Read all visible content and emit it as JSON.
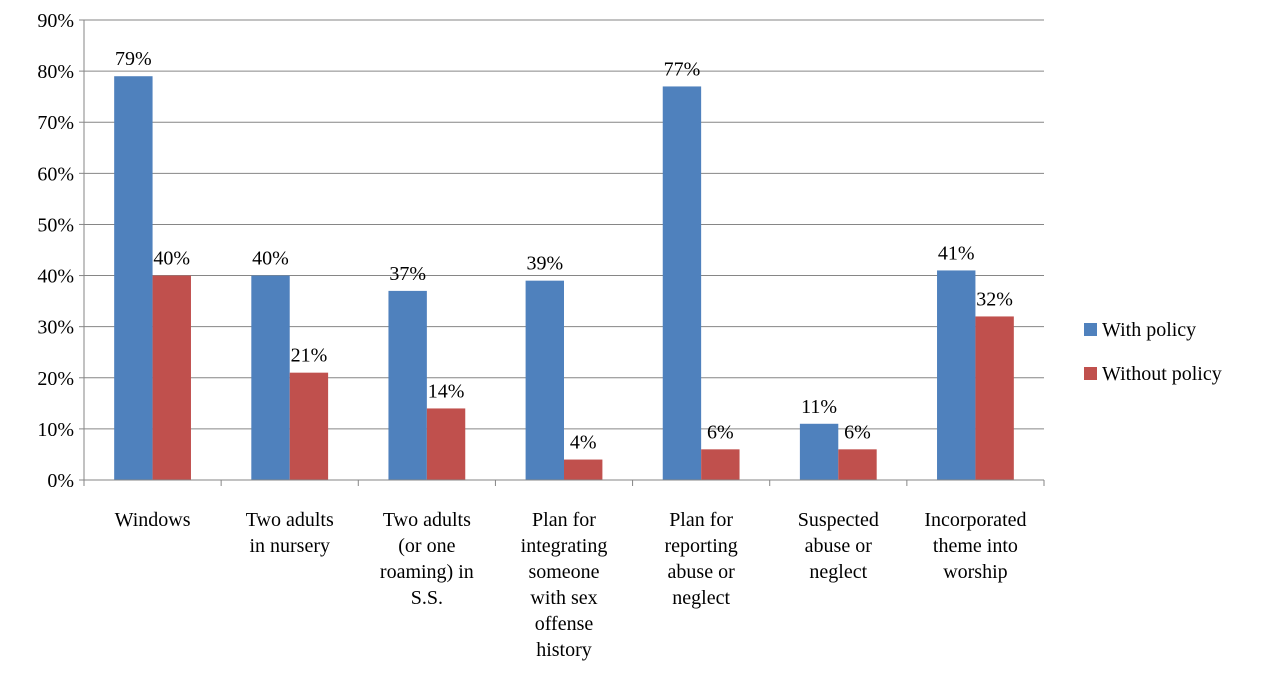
{
  "chart_data": {
    "type": "bar",
    "categories": [
      [
        "Windows"
      ],
      [
        "Two adults",
        "in nursery"
      ],
      [
        "Two adults",
        "(or one",
        "roaming) in",
        "S.S."
      ],
      [
        "Plan for",
        "integrating",
        "someone",
        "with sex",
        "offense",
        "history"
      ],
      [
        "Plan for",
        "reporting",
        "abuse or",
        "neglect"
      ],
      [
        "Suspected",
        "abuse or",
        "neglect"
      ],
      [
        "Incorporated",
        "theme into",
        "worship"
      ]
    ],
    "series": [
      {
        "name": "With policy",
        "color": "#4F81BD",
        "values": [
          79,
          40,
          37,
          39,
          77,
          11,
          41
        ],
        "labels": [
          "79%",
          "40%",
          "37%",
          "39%",
          "77%",
          "11%",
          "41%"
        ]
      },
      {
        "name": "Without policy",
        "color": "#C0504D",
        "values": [
          40,
          21,
          14,
          4,
          6,
          6,
          32
        ],
        "labels": [
          "40%",
          "21%",
          "14%",
          "4%",
          "6%",
          "6%",
          "32%"
        ]
      }
    ],
    "yticks": [
      "0%",
      "10%",
      "20%",
      "30%",
      "40%",
      "50%",
      "60%",
      "70%",
      "80%",
      "90%"
    ],
    "ylim": [
      0,
      90
    ],
    "grid": true,
    "legend_position": "right"
  }
}
